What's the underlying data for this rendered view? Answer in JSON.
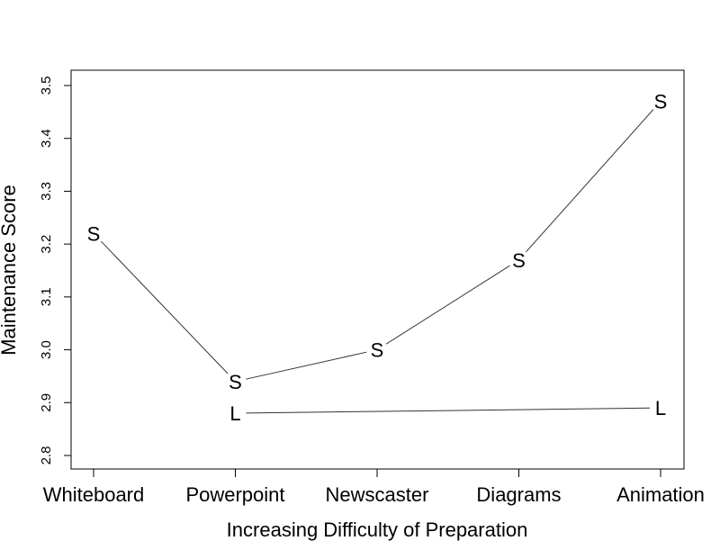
{
  "chart_data": {
    "type": "line",
    "title": "",
    "xlabel": "Increasing Difficulty of Preparation",
    "ylabel": "Maintenance Score",
    "categories": [
      "Whiteboard",
      "Powerpoint",
      "Newscaster",
      "Diagrams",
      "Animation"
    ],
    "ylim": [
      2.8,
      3.5
    ],
    "yticks": [
      "2.8",
      "2.9",
      "3.0",
      "3.1",
      "3.2",
      "3.3",
      "3.4",
      "3.5"
    ],
    "grid": false,
    "series": [
      {
        "name": "S",
        "points": [
          {
            "category": "Whiteboard",
            "value": 3.22
          },
          {
            "category": "Powerpoint",
            "value": 2.94
          },
          {
            "category": "Newscaster",
            "value": 3.0
          },
          {
            "category": "Diagrams",
            "value": 3.17
          },
          {
            "category": "Animation",
            "value": 3.47
          }
        ]
      },
      {
        "name": "L",
        "points": [
          {
            "category": "Powerpoint",
            "value": 2.88
          },
          {
            "category": "Animation",
            "value": 2.89
          }
        ]
      }
    ],
    "colors": {
      "line": "#333333",
      "axis": "#000000",
      "text": "#000000"
    }
  }
}
